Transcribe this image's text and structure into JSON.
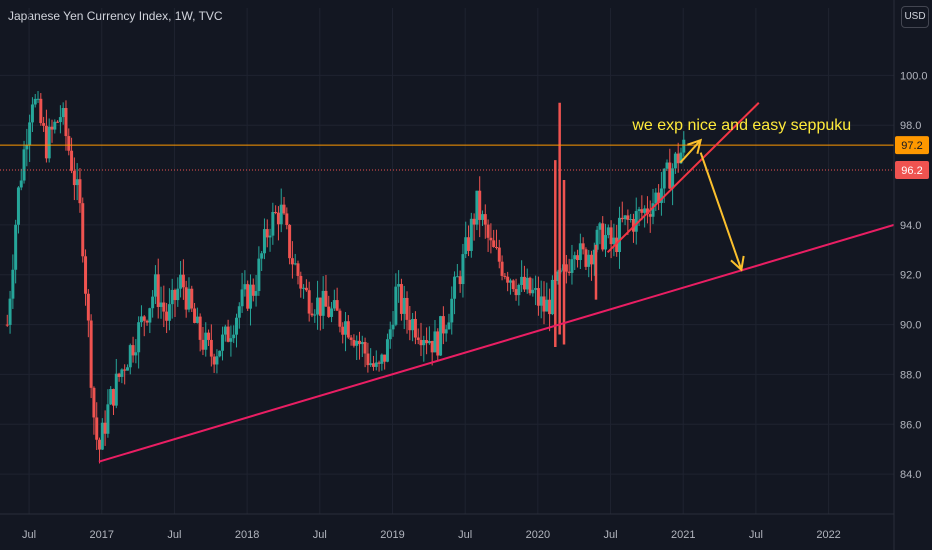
{
  "header": {
    "title": "Japanese Yen Currency Index, 1W, TVC",
    "currency": "USD"
  },
  "colors": {
    "bg": "#131722",
    "grid": "#1f2330",
    "up": "#26a69a",
    "down": "#ef5350",
    "tl_pink": "#e91e63",
    "tl_red": "#f23645",
    "hline": "#ff9800",
    "arrow": "#fbc02d",
    "note": "#ffeb3b",
    "text": "#b2b5be"
  },
  "chart_data": {
    "type": "candlestick",
    "title": "Japanese Yen Currency Index, 1W, TVC",
    "x_ticks": [
      "Jul",
      "2017",
      "Jul",
      "2018",
      "Jul",
      "2019",
      "Jul",
      "2020",
      "Jul",
      "2021",
      "Jul",
      "2022"
    ],
    "y_ticks": [
      "84.0",
      "86.0",
      "88.0",
      "90.0",
      "92.0",
      "94.0",
      "98.0",
      "100.0"
    ],
    "ylim": [
      82.4,
      101.9
    ],
    "xlim": [
      2016.3,
      2022.45
    ],
    "price_labels": [
      {
        "text": "97.2",
        "value": 97.2
      },
      {
        "text": "96.2",
        "value": 96.2
      }
    ],
    "anchors": [
      [
        2016.35,
        90.0
      ],
      [
        2016.42,
        95.0
      ],
      [
        2016.52,
        99.3
      ],
      [
        2016.62,
        97.2
      ],
      [
        2016.72,
        98.5
      ],
      [
        2016.8,
        96.3
      ],
      [
        2016.86,
        94.2
      ],
      [
        2016.95,
        86.0
      ],
      [
        2016.98,
        84.9
      ],
      [
        2017.05,
        86.8
      ],
      [
        2017.15,
        88.4
      ],
      [
        2017.27,
        90.0
      ],
      [
        2017.37,
        91.5
      ],
      [
        2017.45,
        90.2
      ],
      [
        2017.55,
        91.8
      ],
      [
        2017.65,
        89.8
      ],
      [
        2017.75,
        88.8
      ],
      [
        2017.85,
        89.4
      ],
      [
        2017.95,
        90.8
      ],
      [
        2018.05,
        91.5
      ],
      [
        2018.15,
        94.0
      ],
      [
        2018.23,
        94.6
      ],
      [
        2018.3,
        92.8
      ],
      [
        2018.4,
        91.2
      ],
      [
        2018.5,
        90.8
      ],
      [
        2018.6,
        90.4
      ],
      [
        2018.7,
        90.0
      ],
      [
        2018.8,
        89.0
      ],
      [
        2018.9,
        88.0
      ],
      [
        2018.97,
        89.2
      ],
      [
        2019.02,
        91.3
      ],
      [
        2019.1,
        90.3
      ],
      [
        2019.2,
        89.8
      ],
      [
        2019.3,
        89.2
      ],
      [
        2019.4,
        90.8
      ],
      [
        2019.5,
        92.8
      ],
      [
        2019.58,
        94.8
      ],
      [
        2019.68,
        93.0
      ],
      [
        2019.78,
        92.2
      ],
      [
        2019.88,
        91.5
      ],
      [
        2019.97,
        91.2
      ],
      [
        2020.05,
        90.6
      ],
      [
        2020.13,
        91.5
      ],
      [
        2020.2,
        92.2
      ],
      [
        2020.25,
        93.5
      ],
      [
        2020.3,
        92.6
      ],
      [
        2020.36,
        93.0
      ],
      [
        2020.45,
        93.6
      ],
      [
        2020.52,
        93.1
      ],
      [
        2020.58,
        94.0
      ],
      [
        2020.66,
        94.2
      ],
      [
        2020.74,
        94.6
      ],
      [
        2020.82,
        95.2
      ],
      [
        2020.9,
        96.0
      ],
      [
        2020.97,
        96.8
      ],
      [
        2021.02,
        97.2
      ]
    ],
    "spikes": [
      {
        "x": 2020.12,
        "low": 89.1,
        "high": 96.6
      },
      {
        "x": 2020.15,
        "low": 89.6,
        "high": 98.9
      },
      {
        "x": 2020.18,
        "low": 89.2,
        "high": 95.8
      },
      {
        "x": 2020.4,
        "low": 91.0,
        "high": 93.2
      }
    ],
    "trendlines": [
      {
        "name": "support",
        "x1": 2016.98,
        "y1": 84.5,
        "x2": 2022.45,
        "y2": 94.0
      },
      {
        "name": "rising",
        "x1": 2020.48,
        "y1": 92.9,
        "x2": 2021.52,
        "y2": 98.9
      }
    ],
    "arrows": [
      {
        "x1": 2020.98,
        "y1": 96.5,
        "x2": 2021.12,
        "y2": 97.4
      },
      {
        "x1": 2021.12,
        "y1": 96.9,
        "x2": 2021.4,
        "y2": 92.2
      }
    ],
    "annotation": {
      "text": "we exp nice and easy seppuku",
      "x": 2020.65,
      "y": 98.0
    }
  }
}
